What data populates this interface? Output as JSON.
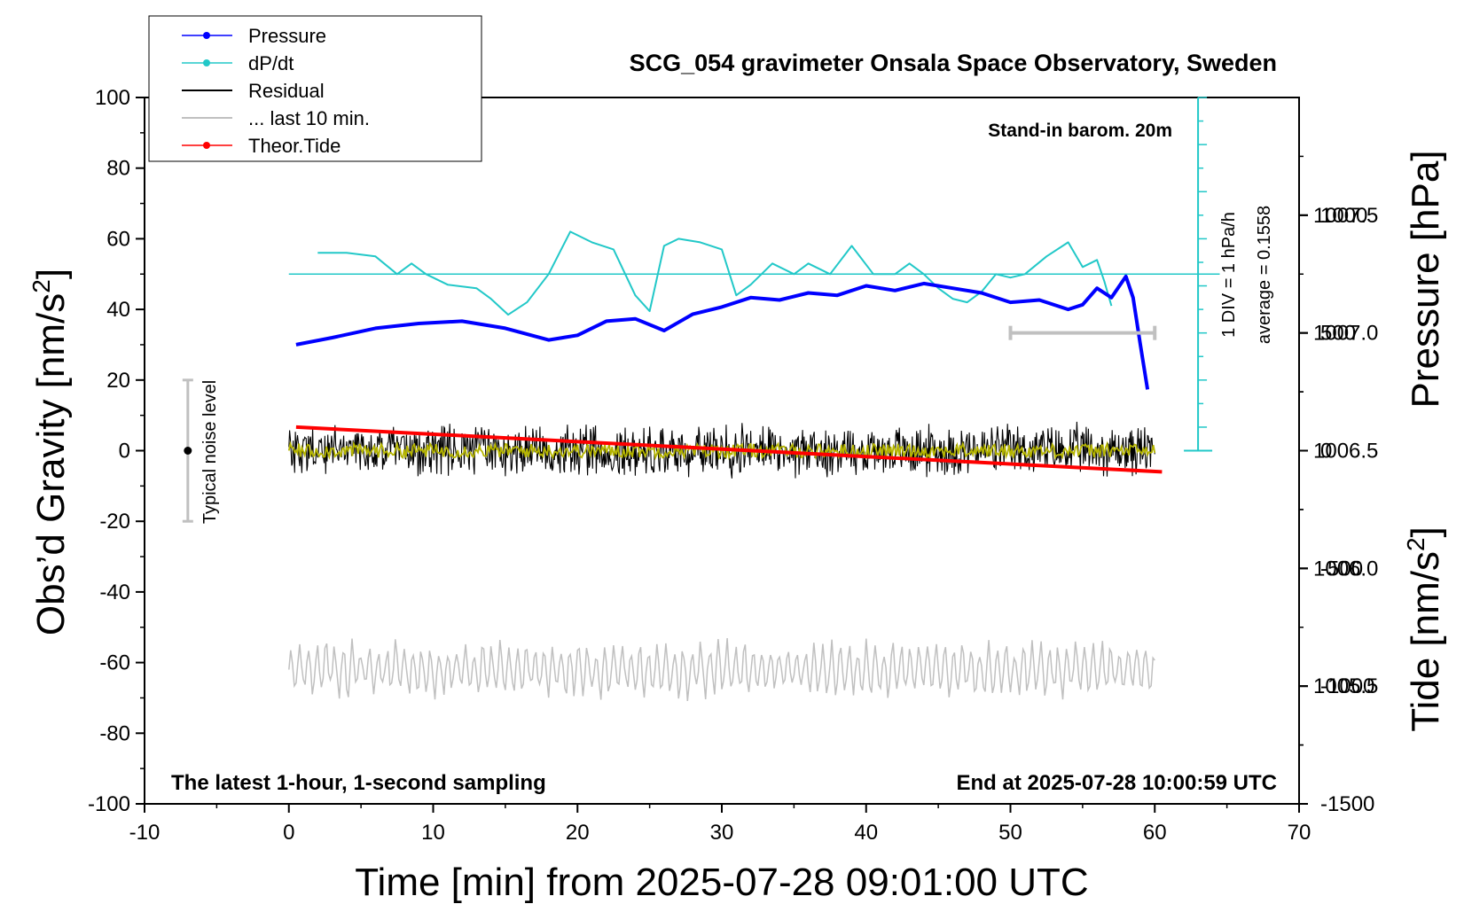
{
  "chart_data": {
    "type": "line",
    "title": "SCG_054 gravimeter Onsala Space Observatory, Sweden",
    "xlabel": "Time [min] from 2025-07-28 09:01:00 UTC",
    "ylabel_left": "Obs’d Gravity [nm/s2]",
    "ylabel_left_main": "Obs’d Gravity [nm/s",
    "ylabel_left_sup": "2",
    "ylabel_left_close": "]",
    "ylabel_right_pressure": "Pressure [hPa]",
    "ylabel_right_tide": "Tide [nm/s2]",
    "ylabel_right_tide_main": "Tide [nm/s",
    "ylabel_right_tide_sup": "2",
    "ylabel_right_tide_close": "]",
    "xlim": [
      -10,
      70
    ],
    "ylim_left": [
      -100,
      100
    ],
    "ylim_pressure": [
      1005.0,
      1008.0
    ],
    "ylim_tide": [
      -1500,
      1500
    ],
    "x_ticks": [
      "-10",
      "0",
      "10",
      "20",
      "30",
      "40",
      "50",
      "60",
      "70"
    ],
    "y_left_ticks": [
      "100",
      "80",
      "60",
      "40",
      "20",
      "0",
      "-20",
      "-40",
      "-60",
      "-80",
      "-100"
    ],
    "pressure_ticks": [
      "1007.5",
      "1007.0",
      "1006.5",
      "1006.0",
      "1005.5"
    ],
    "tide_ticks": [
      "1000",
      "500",
      "0",
      "-500",
      "-1000",
      "-1500"
    ],
    "legend_position": "top-left",
    "legend": [
      {
        "label": "Pressure",
        "color": "#0000ff",
        "marker": true
      },
      {
        "label": "dP/dt",
        "color": "#22c8c8",
        "marker": true
      },
      {
        "label": "Residual",
        "color": "#000000",
        "marker": false
      },
      {
        "label": "... last 10 min.",
        "color": "#c0c0c0",
        "marker": false
      },
      {
        "label": "Theor.Tide",
        "color": "#ff0000",
        "marker": true
      }
    ],
    "annotations": {
      "barometer": "Stand-in barom. 20m",
      "scale_div": "1 DIV = 1 hPa/h",
      "average": "average = 0.1558",
      "noise": "Typical noise level",
      "sampling": "The latest 1-hour, 1-second sampling",
      "end_time": "End at 2025-07-28 10:00:59 UTC"
    },
    "series": [
      {
        "name": "Pressure",
        "axis": "pressure",
        "color": "#0000ff",
        "x": [
          0.5,
          3,
          6,
          9,
          12,
          15,
          18,
          20,
          22,
          24,
          26,
          28,
          30,
          32,
          34,
          36,
          38,
          40,
          42,
          44,
          46,
          48,
          50,
          52,
          54,
          55,
          56,
          57,
          58,
          58.5,
          59,
          59.5
        ],
        "y": [
          1006.95,
          1006.98,
          1007.02,
          1007.04,
          1007.05,
          1007.02,
          1006.97,
          1006.99,
          1007.05,
          1007.06,
          1007.01,
          1007.08,
          1007.11,
          1007.15,
          1007.14,
          1007.17,
          1007.16,
          1007.2,
          1007.18,
          1007.21,
          1007.19,
          1007.17,
          1007.13,
          1007.14,
          1007.1,
          1007.12,
          1007.19,
          1007.15,
          1007.24,
          1007.15,
          1006.95,
          1006.76
        ]
      },
      {
        "name": "dP/dt",
        "axis": "left",
        "color": "#22c8c8",
        "x": [
          2,
          4,
          6,
          7.5,
          8.5,
          9.5,
          11,
          13,
          14,
          15.2,
          16.5,
          18,
          19.5,
          21,
          22.5,
          24,
          25,
          26,
          27,
          28.5,
          30,
          31,
          32,
          33.5,
          35,
          36,
          37.5,
          39,
          40.5,
          42,
          43,
          44,
          45,
          46,
          47,
          48,
          49,
          50,
          51,
          52.5,
          54,
          55,
          56,
          56.5,
          57
        ],
        "y": [
          56,
          56,
          55,
          50,
          53,
          50,
          47,
          46,
          43,
          38.5,
          42,
          50,
          62,
          59,
          57,
          44,
          39.5,
          58,
          60,
          59,
          57,
          44,
          47,
          53,
          50,
          53,
          50,
          58,
          50,
          50,
          53,
          50,
          46,
          43,
          42,
          45,
          50,
          49,
          50,
          55,
          59,
          52,
          54,
          48,
          41
        ]
      },
      {
        "name": "Residual",
        "axis": "left",
        "color": "#000000",
        "x_range": [
          0,
          60
        ],
        "center": 0,
        "amplitude": 6
      },
      {
        "name": "Residual (smoothed)",
        "axis": "left",
        "color": "#b5b500",
        "x_range": [
          0,
          60
        ],
        "center": 0,
        "amplitude": 2
      },
      {
        "name": "... last 10 min.",
        "axis": "left",
        "color": "#c0c0c0",
        "x_range": [
          0,
          60
        ],
        "center": -62,
        "amplitude": 7
      },
      {
        "name": "Theor.Tide",
        "axis": "tide",
        "color": "#ff0000",
        "x": [
          0.5,
          60.5
        ],
        "y": [
          100,
          -90
        ]
      }
    ],
    "reference_line_dpdt": 50,
    "scale_bar_pressure": [
      1005.0,
      1008.0
    ],
    "noise_bar": {
      "x": -7,
      "y": [
        -20,
        20
      ],
      "center": 0
    },
    "grey_bar": {
      "x": [
        50,
        60
      ],
      "y_tide": 500
    }
  }
}
